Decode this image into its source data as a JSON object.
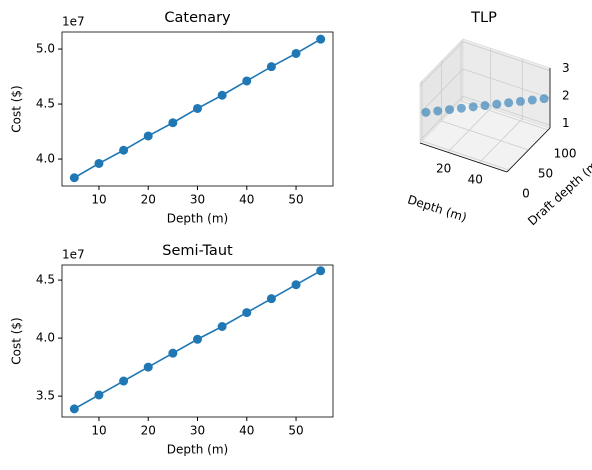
{
  "chart_data": [
    {
      "type": "line",
      "title": "Catenary",
      "x_label": "Depth (m)",
      "y_label": "Cost ($)",
      "y_offset_label": "1e7",
      "x": [
        5,
        10,
        15,
        20,
        25,
        30,
        35,
        40,
        45,
        50,
        55
      ],
      "series": [
        {
          "color": "#1f77b4",
          "values": [
            3.83,
            3.96,
            4.08,
            4.21,
            4.33,
            4.46,
            4.58,
            4.71,
            4.84,
            4.96,
            5.09
          ]
        }
      ],
      "xlim": [
        2.5,
        57.5
      ],
      "xticks": [
        10,
        20,
        30,
        40,
        50
      ],
      "ylim": [
        3.755,
        5.155
      ],
      "yticks": [
        {
          "value": 4.0,
          "label": "4.0"
        },
        {
          "value": 4.5,
          "label": "4.5"
        },
        {
          "value": 5.0,
          "label": "5.0"
        }
      ]
    },
    {
      "type": "scatter3d",
      "title": "TLP",
      "x_label": "Depth (m)",
      "y_label": "Draft depth (m)",
      "x": [
        5,
        10,
        15,
        20,
        25,
        30,
        35,
        40,
        45,
        50,
        55
      ],
      "y": [
        0,
        10,
        20,
        30,
        40,
        50,
        60,
        70,
        80,
        90,
        100
      ],
      "z": [
        2,
        2,
        2,
        2,
        2,
        2,
        2,
        2,
        2,
        2,
        2
      ],
      "color": "#1f77b4",
      "xlim": [
        2.5,
        57.5
      ],
      "xticks": [
        20,
        40
      ],
      "ylim": [
        -5,
        105
      ],
      "yticks": [
        0,
        50,
        100
      ],
      "zlim": [
        0.9,
        3.1
      ],
      "zticks": [
        1,
        2,
        3
      ]
    },
    {
      "type": "line",
      "title": "Semi-Taut",
      "x_label": "Depth (m)",
      "y_label": "Cost ($)",
      "y_offset_label": "1e7",
      "x": [
        5,
        10,
        15,
        20,
        25,
        30,
        35,
        40,
        45,
        50,
        55
      ],
      "series": [
        {
          "color": "#1f77b4",
          "values": [
            3.39,
            3.51,
            3.63,
            3.75,
            3.87,
            3.99,
            4.1,
            4.22,
            4.34,
            4.46,
            4.58
          ]
        }
      ],
      "xlim": [
        2.5,
        57.5
      ],
      "xticks": [
        10,
        20,
        30,
        40,
        50
      ],
      "ylim": [
        3.32,
        4.63
      ],
      "yticks": [
        {
          "value": 3.5,
          "label": "3.5"
        },
        {
          "value": 4.0,
          "label": "4.0"
        },
        {
          "value": 4.5,
          "label": "4.5"
        }
      ]
    }
  ]
}
